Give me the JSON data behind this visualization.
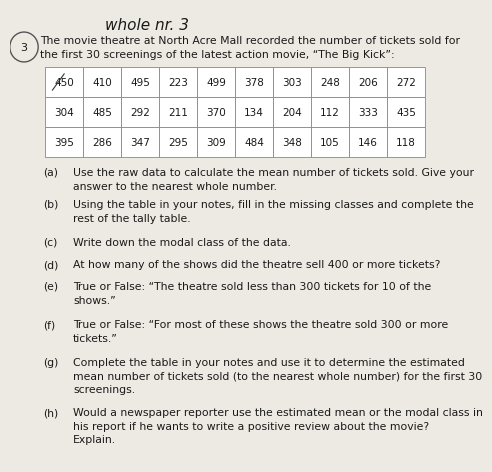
{
  "title_handwritten": "whole nr. 3",
  "number_label": "3",
  "intro_line1": "The movie theatre at North Acre Mall recorded the number of tickets sold for",
  "intro_line2": "the first 30 screenings of the latest action movie, “The Big Kick”:",
  "table_data": [
    [
      "450",
      "410",
      "495",
      "223",
      "499",
      "378",
      "303",
      "248",
      "206",
      "272"
    ],
    [
      "304",
      "485",
      "292",
      "211",
      "370",
      "134",
      "204",
      "112",
      "333",
      "435"
    ],
    [
      "395",
      "286",
      "347",
      "295",
      "309",
      "484",
      "348",
      "105",
      "146",
      "118"
    ]
  ],
  "questions": [
    [
      "(a)",
      "Use the raw data to calculate the mean number of tickets sold. Give your\nanswer to the nearest whole number."
    ],
    [
      "(b)",
      "Using the table in your notes, fill in the missing classes and complete the\nrest of the tally table."
    ],
    [
      "(c)",
      "Write down the modal class of the data."
    ],
    [
      "(d)",
      "At how many of the shows did the theatre sell 400 or more tickets?"
    ],
    [
      "(e)",
      "True or False: “The theatre sold less than 300 tickets for 10 of the\nshows.”"
    ],
    [
      "(f)",
      "True or False: “For most of these shows the theatre sold 300 or more\ntickets.”"
    ],
    [
      "(g)",
      "Complete the table in your notes and use it to determine the estimated\nmean number of tickets sold (to the nearest whole number) for the first 30\nscreenings."
    ],
    [
      "(h)",
      "Would a newspaper reporter use the estimated mean or the modal class in\nhis report if he wants to write a positive review about the movie?\nExplain."
    ]
  ],
  "bg_color": "#edeae3",
  "table_bg": "#ffffff",
  "text_color": "#1a1a1a",
  "grid_color": "#888888",
  "font_size_title": 11,
  "font_size_intro": 7.8,
  "font_size_table": 7.5,
  "font_size_q_label": 7.8,
  "font_size_q_text": 7.8
}
